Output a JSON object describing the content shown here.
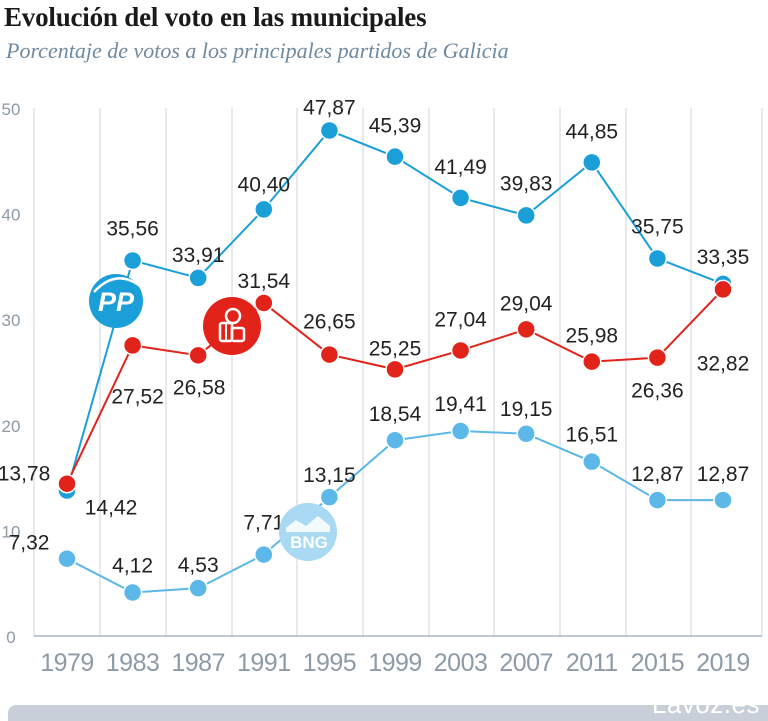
{
  "header": {
    "title": "Evolución del voto en las municipales",
    "subtitle": "Porcentaje de votos a los principales partidos de Galicia"
  },
  "footer": {
    "brand": "Lavoz.es"
  },
  "chart_data": {
    "type": "line",
    "title": "Evolución del voto en las municipales",
    "subtitle": "Porcentaje de votos a los principales partidos de Galicia",
    "categories": [
      "1979",
      "1983",
      "1987",
      "1991",
      "1995",
      "1999",
      "2003",
      "2007",
      "2011",
      "2015",
      "2019"
    ],
    "ylim": [
      0,
      50
    ],
    "yticks": [
      0,
      10,
      20,
      30,
      40,
      50
    ],
    "yticks_labels": [
      "0",
      "10",
      "20",
      "30",
      "40",
      "50"
    ],
    "grid": "vertical",
    "series": [
      {
        "name": "PP",
        "badge": "PP",
        "color": "#1b9fd8",
        "values": [
          13.78,
          35.56,
          33.91,
          40.4,
          47.87,
          45.39,
          41.49,
          39.83,
          44.85,
          35.75,
          33.35
        ],
        "labels": [
          "13,78",
          "35,56",
          "33,91",
          "40,40",
          "47,87",
          "45,39",
          "41,49",
          "39,83",
          "44,85",
          "35,75",
          "33,35"
        ]
      },
      {
        "name": "PSOE",
        "badge_icon": "psoe-rose-icon",
        "color": "#e2231a",
        "values": [
          14.42,
          27.52,
          26.58,
          31.54,
          26.65,
          25.25,
          27.04,
          29.04,
          25.98,
          26.36,
          32.82
        ],
        "labels": [
          "14,42",
          "27,52",
          "26,58",
          "31,54",
          "26,65",
          "25,25",
          "27,04",
          "29,04",
          "25,98",
          "26,36",
          "32,82"
        ]
      },
      {
        "name": "BNG",
        "badge": "BNG",
        "color": "#5cb8e8",
        "values": [
          7.32,
          4.12,
          4.53,
          7.71,
          13.15,
          18.54,
          19.41,
          19.15,
          16.51,
          12.87,
          12.87
        ],
        "labels": [
          "7,32",
          "4,12",
          "4,53",
          "7,71",
          "13,15",
          "18,54",
          "19,41",
          "19,15",
          "16,51",
          "12,87",
          "12,87"
        ]
      }
    ]
  }
}
